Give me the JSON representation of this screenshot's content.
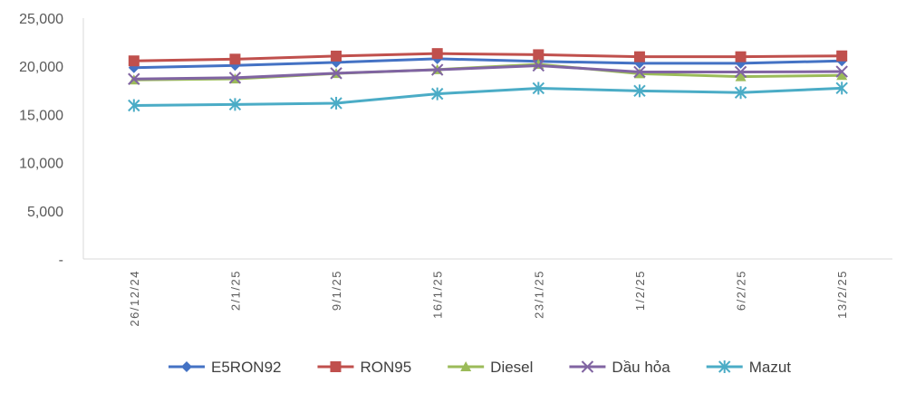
{
  "chart_data": {
    "type": "line",
    "title": "",
    "xlabel": "",
    "ylabel": "",
    "categories": [
      "26/12/24",
      "2/1/25",
      "9/1/25",
      "16/1/25",
      "23/1/25",
      "1/2/25",
      "6/2/25",
      "13/2/25"
    ],
    "ylim": [
      0,
      25000
    ],
    "yticks": [
      0,
      5000,
      10000,
      15000,
      20000,
      25000
    ],
    "ytick_labels": [
      "-",
      "5,000",
      "10,000",
      "15,000",
      "20,000",
      "25,000"
    ],
    "grid": false,
    "legend_position": "bottom",
    "series": [
      {
        "name": "E5RON92",
        "color": "#4472C4",
        "marker": "diamond",
        "values": [
          19850,
          20090,
          20410,
          20780,
          20510,
          20310,
          20310,
          20560
        ]
      },
      {
        "name": "RON95",
        "color": "#C0504D",
        "marker": "square",
        "values": [
          20560,
          20740,
          21060,
          21320,
          21200,
          20990,
          20990,
          21080
        ]
      },
      {
        "name": "Diesel",
        "color": "#9BBB59",
        "marker": "triangle",
        "values": [
          18590,
          18690,
          19260,
          19660,
          20210,
          19230,
          18930,
          19050
        ]
      },
      {
        "name": "Dầu hỏa",
        "color": "#8064A2",
        "marker": "x",
        "values": [
          18680,
          18810,
          19280,
          19640,
          20070,
          19410,
          19410,
          19450
        ]
      },
      {
        "name": "Mazut",
        "color": "#4BACC6",
        "marker": "star",
        "values": [
          15930,
          16040,
          16170,
          17140,
          17720,
          17450,
          17270,
          17730
        ]
      }
    ]
  }
}
